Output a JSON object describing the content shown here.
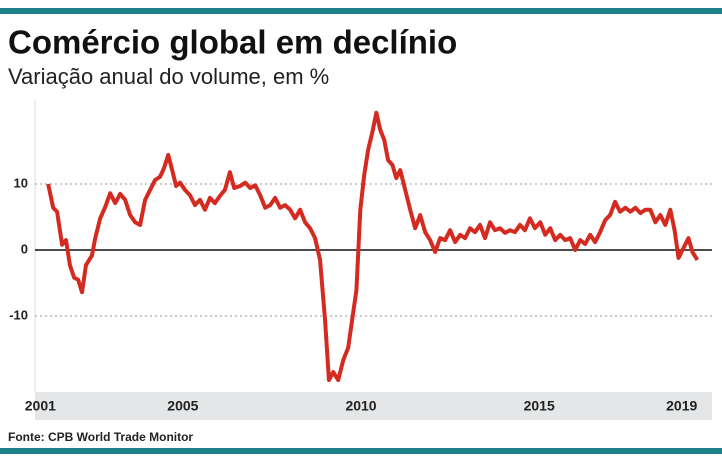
{
  "chart_data": {
    "type": "line",
    "title": "Comércio global em declínio",
    "subtitle": "Variação anual do volume, em %",
    "source": "Fonte: CPB World Trade Monitor",
    "color": "#d42a1f",
    "xlim": [
      2000.85,
      2019.85
    ],
    "xticks": [
      2001,
      2005,
      2010,
      2015,
      2019
    ],
    "ylim": [
      -20,
      22
    ],
    "yticks": [
      -10,
      0,
      10
    ],
    "grid": true,
    "x": [
      2001.22,
      2001.36,
      2001.47,
      2001.61,
      2001.72,
      2001.83,
      2001.95,
      2002.06,
      2002.17,
      2002.28,
      2002.45,
      2002.54,
      2002.68,
      2002.82,
      2002.96,
      2003.1,
      2003.24,
      2003.38,
      2003.52,
      2003.66,
      2003.8,
      2003.94,
      2004.08,
      2004.22,
      2004.36,
      2004.47,
      2004.59,
      2004.7,
      2004.81,
      2004.92,
      2005.06,
      2005.2,
      2005.34,
      2005.48,
      2005.62,
      2005.76,
      2005.9,
      2006.04,
      2006.18,
      2006.32,
      2006.44,
      2006.61,
      2006.75,
      2006.89,
      2007.03,
      2007.17,
      2007.31,
      2007.45,
      2007.59,
      2007.73,
      2007.87,
      2008.01,
      2008.15,
      2008.29,
      2008.43,
      2008.57,
      2008.71,
      2008.85,
      2008.99,
      2009.1,
      2009.22,
      2009.36,
      2009.5,
      2009.64,
      2009.75,
      2009.87,
      2009.98,
      2010.09,
      2010.2,
      2010.32,
      2010.43,
      2010.54,
      2010.65,
      2010.76,
      2010.88,
      2010.99,
      2011.1,
      2011.24,
      2011.38,
      2011.52,
      2011.66,
      2011.8,
      2011.94,
      2012.08,
      2012.22,
      2012.36,
      2012.5,
      2012.64,
      2012.78,
      2012.92,
      2013.06,
      2013.2,
      2013.34,
      2013.48,
      2013.62,
      2013.76,
      2013.9,
      2014.04,
      2014.18,
      2014.32,
      2014.46,
      2014.6,
      2014.74,
      2014.88,
      2015.03,
      2015.17,
      2015.31,
      2015.45,
      2015.59,
      2015.73,
      2015.87,
      2016.01,
      2016.15,
      2016.29,
      2016.43,
      2016.57,
      2016.71,
      2016.85,
      2016.99,
      2017.13,
      2017.27,
      2017.42,
      2017.56,
      2017.7,
      2017.84,
      2017.98,
      2018.12,
      2018.26,
      2018.4,
      2018.54,
      2018.68,
      2018.8,
      2018.91,
      2019.05,
      2019.19,
      2019.3,
      2019.44
    ],
    "values": [
      10,
      6.4,
      5.8,
      0.8,
      1.5,
      -2.3,
      -4.2,
      -4.5,
      -6.4,
      -2.3,
      -0.8,
      1.8,
      4.8,
      6.5,
      8.6,
      7.1,
      8.5,
      7.6,
      5.3,
      4.2,
      3.8,
      7.6,
      9.1,
      10.6,
      11.1,
      12.4,
      14.4,
      12.1,
      9.7,
      10.2,
      9.1,
      8.3,
      6.8,
      7.6,
      6.1,
      7.9,
      7.1,
      8.2,
      9.1,
      11.8,
      9.4,
      9.7,
      10.2,
      9.4,
      9.8,
      8.3,
      6.4,
      6.8,
      7.9,
      6.4,
      6.8,
      6.1,
      4.8,
      6.1,
      4.2,
      3.3,
      1.8,
      -1.5,
      -10.6,
      -19.7,
      -18.5,
      -19.7,
      -16.7,
      -14.8,
      -10.6,
      -6.1,
      6.1,
      11.4,
      15.2,
      17.9,
      20.8,
      18.2,
      16.7,
      13.6,
      12.9,
      10.9,
      12.1,
      9.1,
      6.1,
      3.3,
      5.3,
      2.7,
      1.5,
      -0.3,
      1.8,
      1.5,
      3.0,
      1.2,
      2.3,
      1.8,
      3.3,
      2.7,
      3.8,
      1.8,
      4.2,
      3.0,
      3.3,
      2.6,
      3.0,
      2.7,
      3.8,
      3.0,
      4.8,
      3.3,
      4.2,
      2.3,
      3.3,
      1.5,
      2.3,
      1.5,
      1.8,
      0,
      1.5,
      0.9,
      2.3,
      1.2,
      2.7,
      4.5,
      5.3,
      7.3,
      5.8,
      6.4,
      5.8,
      6.4,
      5.6,
      6.1,
      6.1,
      4.2,
      5.3,
      3.8,
      6.1,
      3.0,
      -1.2,
      0.3,
      1.8,
      -0.3,
      -1.5
    ]
  }
}
